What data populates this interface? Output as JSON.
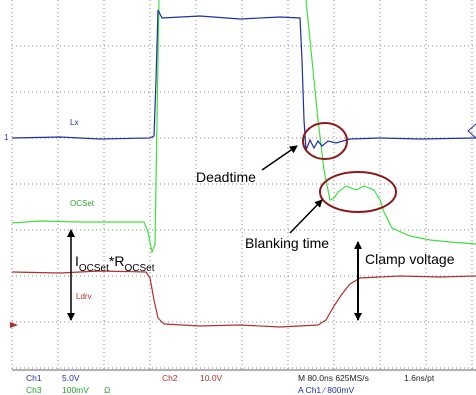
{
  "traces": {
    "lx": "Lx",
    "lx_marker": "1",
    "ocset": "OCSet",
    "ldrv": "Ldrv"
  },
  "annotations": {
    "deadtime": "Deadtime",
    "blanking": "Blanking time",
    "clamp": "Clamp voltage",
    "current": {
      "i": "I",
      "i_sub": "OCSet",
      "r": "*R",
      "r_sub": "OCSet"
    }
  },
  "status": {
    "ch1": "Ch1",
    "ch1_scale": "5.0V",
    "ch3": "Ch3",
    "ch3_scale": "100mV",
    "ch3_unit": "Ω",
    "ch2": "Ch2",
    "ch2_scale": "10.0V",
    "timebase": "M 80.0ns 625MS/s",
    "resolution": "1.6ns/pt",
    "trigger": "A Ch1 ∕ 800mV"
  }
}
